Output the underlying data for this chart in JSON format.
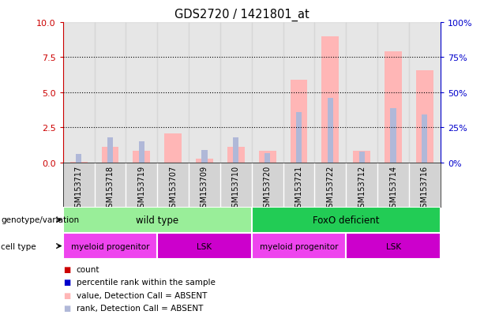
{
  "title": "GDS2720 / 1421801_at",
  "samples": [
    "GSM153717",
    "GSM153718",
    "GSM153719",
    "GSM153707",
    "GSM153709",
    "GSM153710",
    "GSM153720",
    "GSM153721",
    "GSM153722",
    "GSM153712",
    "GSM153714",
    "GSM153716"
  ],
  "value_bars": [
    0.05,
    1.1,
    0.85,
    2.1,
    0.3,
    1.1,
    0.85,
    5.9,
    9.0,
    0.85,
    7.9,
    6.6
  ],
  "rank_bars": [
    0.6,
    1.8,
    1.5,
    0.0,
    0.9,
    1.8,
    0.7,
    3.6,
    4.6,
    0.8,
    3.9,
    3.4
  ],
  "ylim_left": [
    0,
    10
  ],
  "ylim_right": [
    0,
    100
  ],
  "yticks_left": [
    0,
    2.5,
    5.0,
    7.5,
    10
  ],
  "yticks_right": [
    0,
    25,
    50,
    75,
    100
  ],
  "color_value_absent": "#FFB6B6",
  "color_rank_absent": "#B0B8D8",
  "color_count": "#CC0000",
  "color_rank": "#0000CC",
  "col_bg": "#D3D3D3",
  "genotype_groups": [
    {
      "label": "wild type",
      "span": [
        0,
        6
      ],
      "color": "#99EE99"
    },
    {
      "label": "FoxO deficient",
      "span": [
        6,
        12
      ],
      "color": "#22CC55"
    }
  ],
  "cell_type_groups": [
    {
      "label": "myeloid progenitor",
      "span": [
        0,
        3
      ],
      "color": "#EE44EE"
    },
    {
      "label": "LSK",
      "span": [
        3,
        6
      ],
      "color": "#CC00CC"
    },
    {
      "label": "myeloid progenitor",
      "span": [
        6,
        9
      ],
      "color": "#EE44EE"
    },
    {
      "label": "LSK",
      "span": [
        9,
        12
      ],
      "color": "#CC00CC"
    }
  ],
  "legend_items": [
    {
      "label": "count",
      "color": "#CC0000"
    },
    {
      "label": "percentile rank within the sample",
      "color": "#0000CC"
    },
    {
      "label": "value, Detection Call = ABSENT",
      "color": "#FFB6B6"
    },
    {
      "label": "rank, Detection Call = ABSENT",
      "color": "#B0B8D8"
    }
  ]
}
